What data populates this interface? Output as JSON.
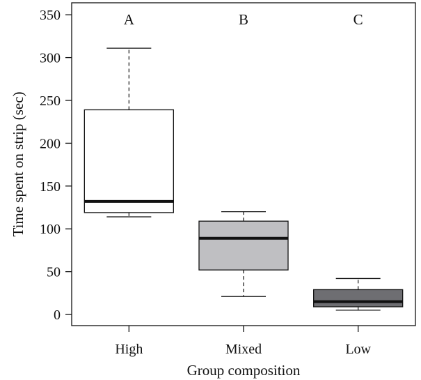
{
  "chart_data": {
    "type": "boxplot",
    "xlabel": "Group composition",
    "ylabel": "Time spent on strip (sec)",
    "ylim": [
      -13,
      364
    ],
    "yticks": [
      0,
      50,
      100,
      150,
      200,
      250,
      300,
      350
    ],
    "grid": false,
    "categories": [
      "High",
      "Mixed",
      "Low"
    ],
    "significance_letters": [
      "A",
      "B",
      "C"
    ],
    "boxes": [
      {
        "category": "High",
        "whisker_low": 114,
        "q1": 119,
        "median": 132,
        "q3": 239,
        "whisker_high": 311,
        "color": "#ffffff"
      },
      {
        "category": "Mixed",
        "whisker_low": 21,
        "q1": 52,
        "median": 89,
        "q3": 109,
        "whisker_high": 120,
        "color": "#bfbfc2"
      },
      {
        "category": "Low",
        "whisker_low": 5,
        "q1": 9,
        "median": 15,
        "q3": 29,
        "whisker_high": 42,
        "color": "#6e6e72"
      }
    ]
  }
}
